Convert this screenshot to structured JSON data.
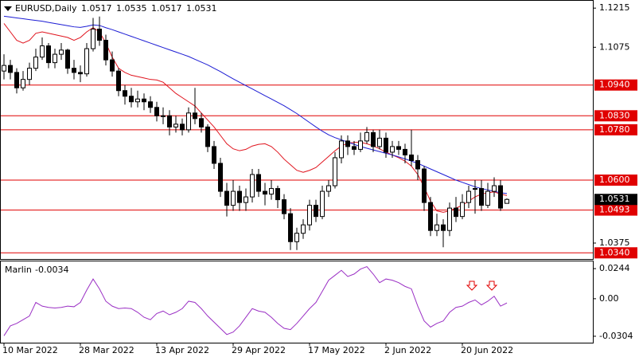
{
  "symbol": "EURUSD,Daily",
  "chart_data": [
    {
      "type": "candlestick",
      "categories": [
        "10 Mar 2022",
        null,
        null,
        null,
        null,
        null,
        null,
        null,
        null,
        null,
        null,
        null,
        "28 Mar 2022",
        null,
        null,
        null,
        null,
        null,
        null,
        null,
        null,
        null,
        null,
        null,
        "13 Apr 2022",
        null,
        null,
        null,
        null,
        null,
        null,
        null,
        null,
        null,
        null,
        null,
        "29 Apr 2022",
        null,
        null,
        null,
        null,
        null,
        null,
        null,
        null,
        null,
        null,
        null,
        "17 May 2022",
        null,
        null,
        null,
        null,
        null,
        null,
        null,
        null,
        null,
        null,
        null,
        "2 Jun 2022",
        null,
        null,
        null,
        null,
        null,
        null,
        null,
        null,
        null,
        null,
        null,
        "20 Jun 2022",
        null,
        null,
        null,
        null,
        null,
        null,
        null
      ],
      "candles": [
        [
          1.099,
          1.105,
          1.096,
          1.101
        ],
        [
          1.101,
          1.103,
          1.096,
          1.0985
        ],
        [
          1.0985,
          1.1,
          1.091,
          1.093
        ],
        [
          1.093,
          1.099,
          1.092,
          1.096
        ],
        [
          1.096,
          1.102,
          1.094,
          1.1
        ],
        [
          1.1,
          1.107,
          1.099,
          1.104
        ],
        [
          1.104,
          1.111,
          1.103,
          1.108
        ],
        [
          1.108,
          1.109,
          1.1,
          1.102
        ],
        [
          1.102,
          1.107,
          1.1,
          1.105
        ],
        [
          1.105,
          1.109,
          1.103,
          1.1065
        ],
        [
          1.1065,
          1.107,
          1.098,
          1.1
        ],
        [
          1.1,
          1.103,
          1.096,
          1.0985
        ],
        [
          1.0985,
          1.101,
          1.095,
          1.098
        ],
        [
          1.098,
          1.109,
          1.097,
          1.107
        ],
        [
          1.107,
          1.118,
          1.106,
          1.114
        ],
        [
          1.114,
          1.1185,
          1.108,
          1.11
        ],
        [
          1.11,
          1.112,
          1.101,
          1.103
        ],
        [
          1.103,
          1.106,
          1.097,
          1.099
        ],
        [
          1.099,
          1.1,
          1.09,
          1.092
        ],
        [
          1.092,
          1.094,
          1.087,
          1.09
        ],
        [
          1.09,
          1.093,
          1.086,
          1.088
        ],
        [
          1.088,
          1.092,
          1.086,
          1.089
        ],
        [
          1.089,
          1.091,
          1.085,
          1.088
        ],
        [
          1.088,
          1.09,
          1.084,
          1.086
        ],
        [
          1.086,
          1.088,
          1.081,
          1.083
        ],
        [
          1.083,
          1.086,
          1.08,
          1.083
        ],
        [
          1.083,
          1.085,
          1.076,
          1.079
        ],
        [
          1.079,
          1.083,
          1.077,
          1.08
        ],
        [
          1.08,
          1.082,
          1.076,
          1.078
        ],
        [
          1.078,
          1.086,
          1.077,
          1.084
        ],
        [
          1.084,
          1.093,
          1.08,
          1.082
        ],
        [
          1.082,
          1.084,
          1.077,
          1.079
        ],
        [
          1.079,
          1.08,
          1.07,
          1.072
        ],
        [
          1.072,
          1.074,
          1.064,
          1.066
        ],
        [
          1.066,
          1.068,
          1.054,
          1.056
        ],
        [
          1.056,
          1.059,
          1.047,
          1.051
        ],
        [
          1.051,
          1.06,
          1.049,
          1.056
        ],
        [
          1.056,
          1.058,
          1.049,
          1.052
        ],
        [
          1.052,
          1.057,
          1.049,
          1.054
        ],
        [
          1.054,
          1.064,
          1.052,
          1.062
        ],
        [
          1.062,
          1.064,
          1.054,
          1.056
        ],
        [
          1.056,
          1.059,
          1.051,
          1.055
        ],
        [
          1.055,
          1.06,
          1.053,
          1.057
        ],
        [
          1.057,
          1.058,
          1.05,
          1.053
        ],
        [
          1.053,
          1.055,
          1.046,
          1.048
        ],
        [
          1.048,
          1.05,
          1.035,
          1.038
        ],
        [
          1.038,
          1.043,
          1.035,
          1.041
        ],
        [
          1.041,
          1.046,
          1.039,
          1.044
        ],
        [
          1.044,
          1.053,
          1.042,
          1.051
        ],
        [
          1.051,
          1.053,
          1.045,
          1.047
        ],
        [
          1.047,
          1.058,
          1.046,
          1.056
        ],
        [
          1.056,
          1.06,
          1.054,
          1.058
        ],
        [
          1.058,
          1.07,
          1.057,
          1.068
        ],
        [
          1.068,
          1.076,
          1.066,
          1.074
        ],
        [
          1.074,
          1.076,
          1.069,
          1.072
        ],
        [
          1.072,
          1.074,
          1.069,
          1.071
        ],
        [
          1.071,
          1.077,
          1.07,
          1.074
        ],
        [
          1.074,
          1.079,
          1.073,
          1.077
        ],
        [
          1.077,
          1.078,
          1.07,
          1.072
        ],
        [
          1.072,
          1.078,
          1.071,
          1.075
        ],
        [
          1.075,
          1.077,
          1.068,
          1.07
        ],
        [
          1.07,
          1.074,
          1.068,
          1.072
        ],
        [
          1.072,
          1.074,
          1.069,
          1.071
        ],
        [
          1.071,
          1.073,
          1.066,
          1.069
        ],
        [
          1.069,
          1.078,
          1.065,
          1.067
        ],
        [
          1.067,
          1.069,
          1.06,
          1.064
        ],
        [
          1.064,
          1.065,
          1.049,
          1.052
        ],
        [
          1.052,
          1.054,
          1.04,
          1.042
        ],
        [
          1.042,
          1.048,
          1.04,
          1.044
        ],
        [
          1.044,
          1.046,
          1.036,
          1.042
        ],
        [
          1.042,
          1.052,
          1.04,
          1.05
        ],
        [
          1.05,
          1.054,
          1.045,
          1.047
        ],
        [
          1.047,
          1.055,
          1.046,
          1.052
        ],
        [
          1.052,
          1.058,
          1.05,
          1.056
        ],
        [
          1.057,
          1.06,
          1.048,
          1.057
        ],
        [
          1.057,
          1.06,
          1.049,
          1.051
        ],
        [
          1.051,
          1.059,
          1.05,
          1.056
        ],
        [
          1.056,
          1.061,
          1.054,
          1.058
        ],
        [
          1.058,
          1.06,
          1.049,
          1.05
        ],
        [
          1.0517,
          1.0535,
          1.0517,
          1.0531
        ]
      ],
      "series": [
        {
          "color": "#e0141e",
          "values": [
            1.116,
            1.113,
            1.11,
            1.109,
            1.11,
            1.1125,
            1.113,
            1.1125,
            1.112,
            1.1115,
            1.111,
            1.11,
            1.111,
            1.113,
            1.1145,
            1.113,
            1.109,
            1.104,
            1.1,
            1.0985,
            1.0975,
            1.097,
            1.0965,
            1.096,
            1.0958,
            1.095,
            1.093,
            1.091,
            1.0895,
            1.088,
            1.0865,
            1.084,
            1.0815,
            1.079,
            1.076,
            1.073,
            1.0712,
            1.0705,
            1.071,
            1.0722,
            1.0728,
            1.073,
            1.072,
            1.07,
            1.0675,
            1.0655,
            1.0635,
            1.0628,
            1.0635,
            1.0645,
            1.0665,
            1.0685,
            1.0705,
            1.0722,
            1.0732,
            1.0735,
            1.0735,
            1.073,
            1.0722,
            1.0712,
            1.07,
            1.069,
            1.068,
            1.0668,
            1.065,
            1.062,
            1.0575,
            1.0525,
            1.049,
            1.0485,
            1.049,
            1.05,
            1.051,
            1.0525,
            1.054,
            1.055,
            1.0555,
            1.0558,
            1.055,
            1.0545
          ]
        },
        {
          "color": "#1c1cd4",
          "values": [
            1.1186,
            1.1183,
            1.118,
            1.1177,
            1.1174,
            1.1171,
            1.1168,
            1.1164,
            1.116,
            1.1156,
            1.1152,
            1.1148,
            1.1146,
            1.115,
            1.1155,
            1.1153,
            1.1145,
            1.1138,
            1.113,
            1.1122,
            1.1114,
            1.1106,
            1.1098,
            1.109,
            1.1082,
            1.1074,
            1.1066,
            1.1058,
            1.105,
            1.1042,
            1.1032,
            1.1022,
            1.1012,
            1.1,
            1.0988,
            1.0975,
            1.0962,
            1.095,
            1.0938,
            1.0926,
            1.0914,
            1.0902,
            1.089,
            1.0878,
            1.0866,
            1.0852,
            1.0838,
            1.0822,
            1.0806,
            1.079,
            1.0775,
            1.0762,
            1.0752,
            1.0744,
            1.0736,
            1.0728,
            1.072,
            1.0714,
            1.0708,
            1.0702,
            1.0696,
            1.069,
            1.0683,
            1.0676,
            1.0668,
            1.066,
            1.065,
            1.064,
            1.063,
            1.062,
            1.061,
            1.06,
            1.0592,
            1.0584,
            1.0576,
            1.057,
            1.0565,
            1.056,
            1.0555,
            1.0552
          ]
        }
      ],
      "levels": [
        {
          "value": 1.094,
          "label": "1.0940"
        },
        {
          "value": 1.083,
          "label": "1.0830"
        },
        {
          "value": 1.078,
          "label": "1.0780"
        },
        {
          "value": 1.06,
          "label": "1.0600"
        },
        1.0493,
        {
          "value": 1.034,
          "label": "1.0340"
        }
      ],
      "level_color": "#e00000",
      "ylim": [
        1.0318,
        1.1244
      ],
      "yticks": [
        1.1215,
        1.1075,
        1.0375
      ]
    },
    {
      "type": "line",
      "title": "Marlin",
      "series": [
        {
          "color": "#9a2fc4",
          "values": [
            -0.03,
            -0.022,
            -0.02,
            -0.017,
            -0.014,
            -0.003,
            -0.006,
            -0.007,
            -0.0075,
            -0.007,
            -0.006,
            -0.0065,
            -0.003,
            0.007,
            0.016,
            0.008,
            -0.002,
            -0.006,
            -0.008,
            -0.0075,
            -0.008,
            -0.011,
            -0.015,
            -0.017,
            -0.012,
            -0.01,
            -0.013,
            -0.011,
            -0.008,
            -0.002,
            -0.003,
            -0.008,
            -0.014,
            -0.019,
            -0.024,
            -0.029,
            -0.027,
            -0.022,
            -0.015,
            -0.008,
            -0.01,
            -0.011,
            -0.015,
            -0.02,
            -0.024,
            -0.025,
            -0.02,
            -0.014,
            -0.008,
            -0.003,
            0.006,
            0.015,
            0.019,
            0.023,
            0.018,
            0.02,
            0.024,
            0.026,
            0.02,
            0.013,
            0.016,
            0.015,
            0.013,
            0.01,
            0.008,
            -0.006,
            -0.018,
            -0.023,
            -0.02,
            -0.018,
            -0.011,
            -0.007,
            -0.006,
            -0.003,
            -0.001,
            -0.005,
            -0.002,
            0.002,
            -0.006,
            -0.0034
          ]
        }
      ],
      "ylim": [
        -0.0356,
        0.0309
      ],
      "yticks": [
        0.0244,
        {
          "value": 0,
          "label": "0.00"
        },
        -0.0304
      ]
    }
  ]
}
